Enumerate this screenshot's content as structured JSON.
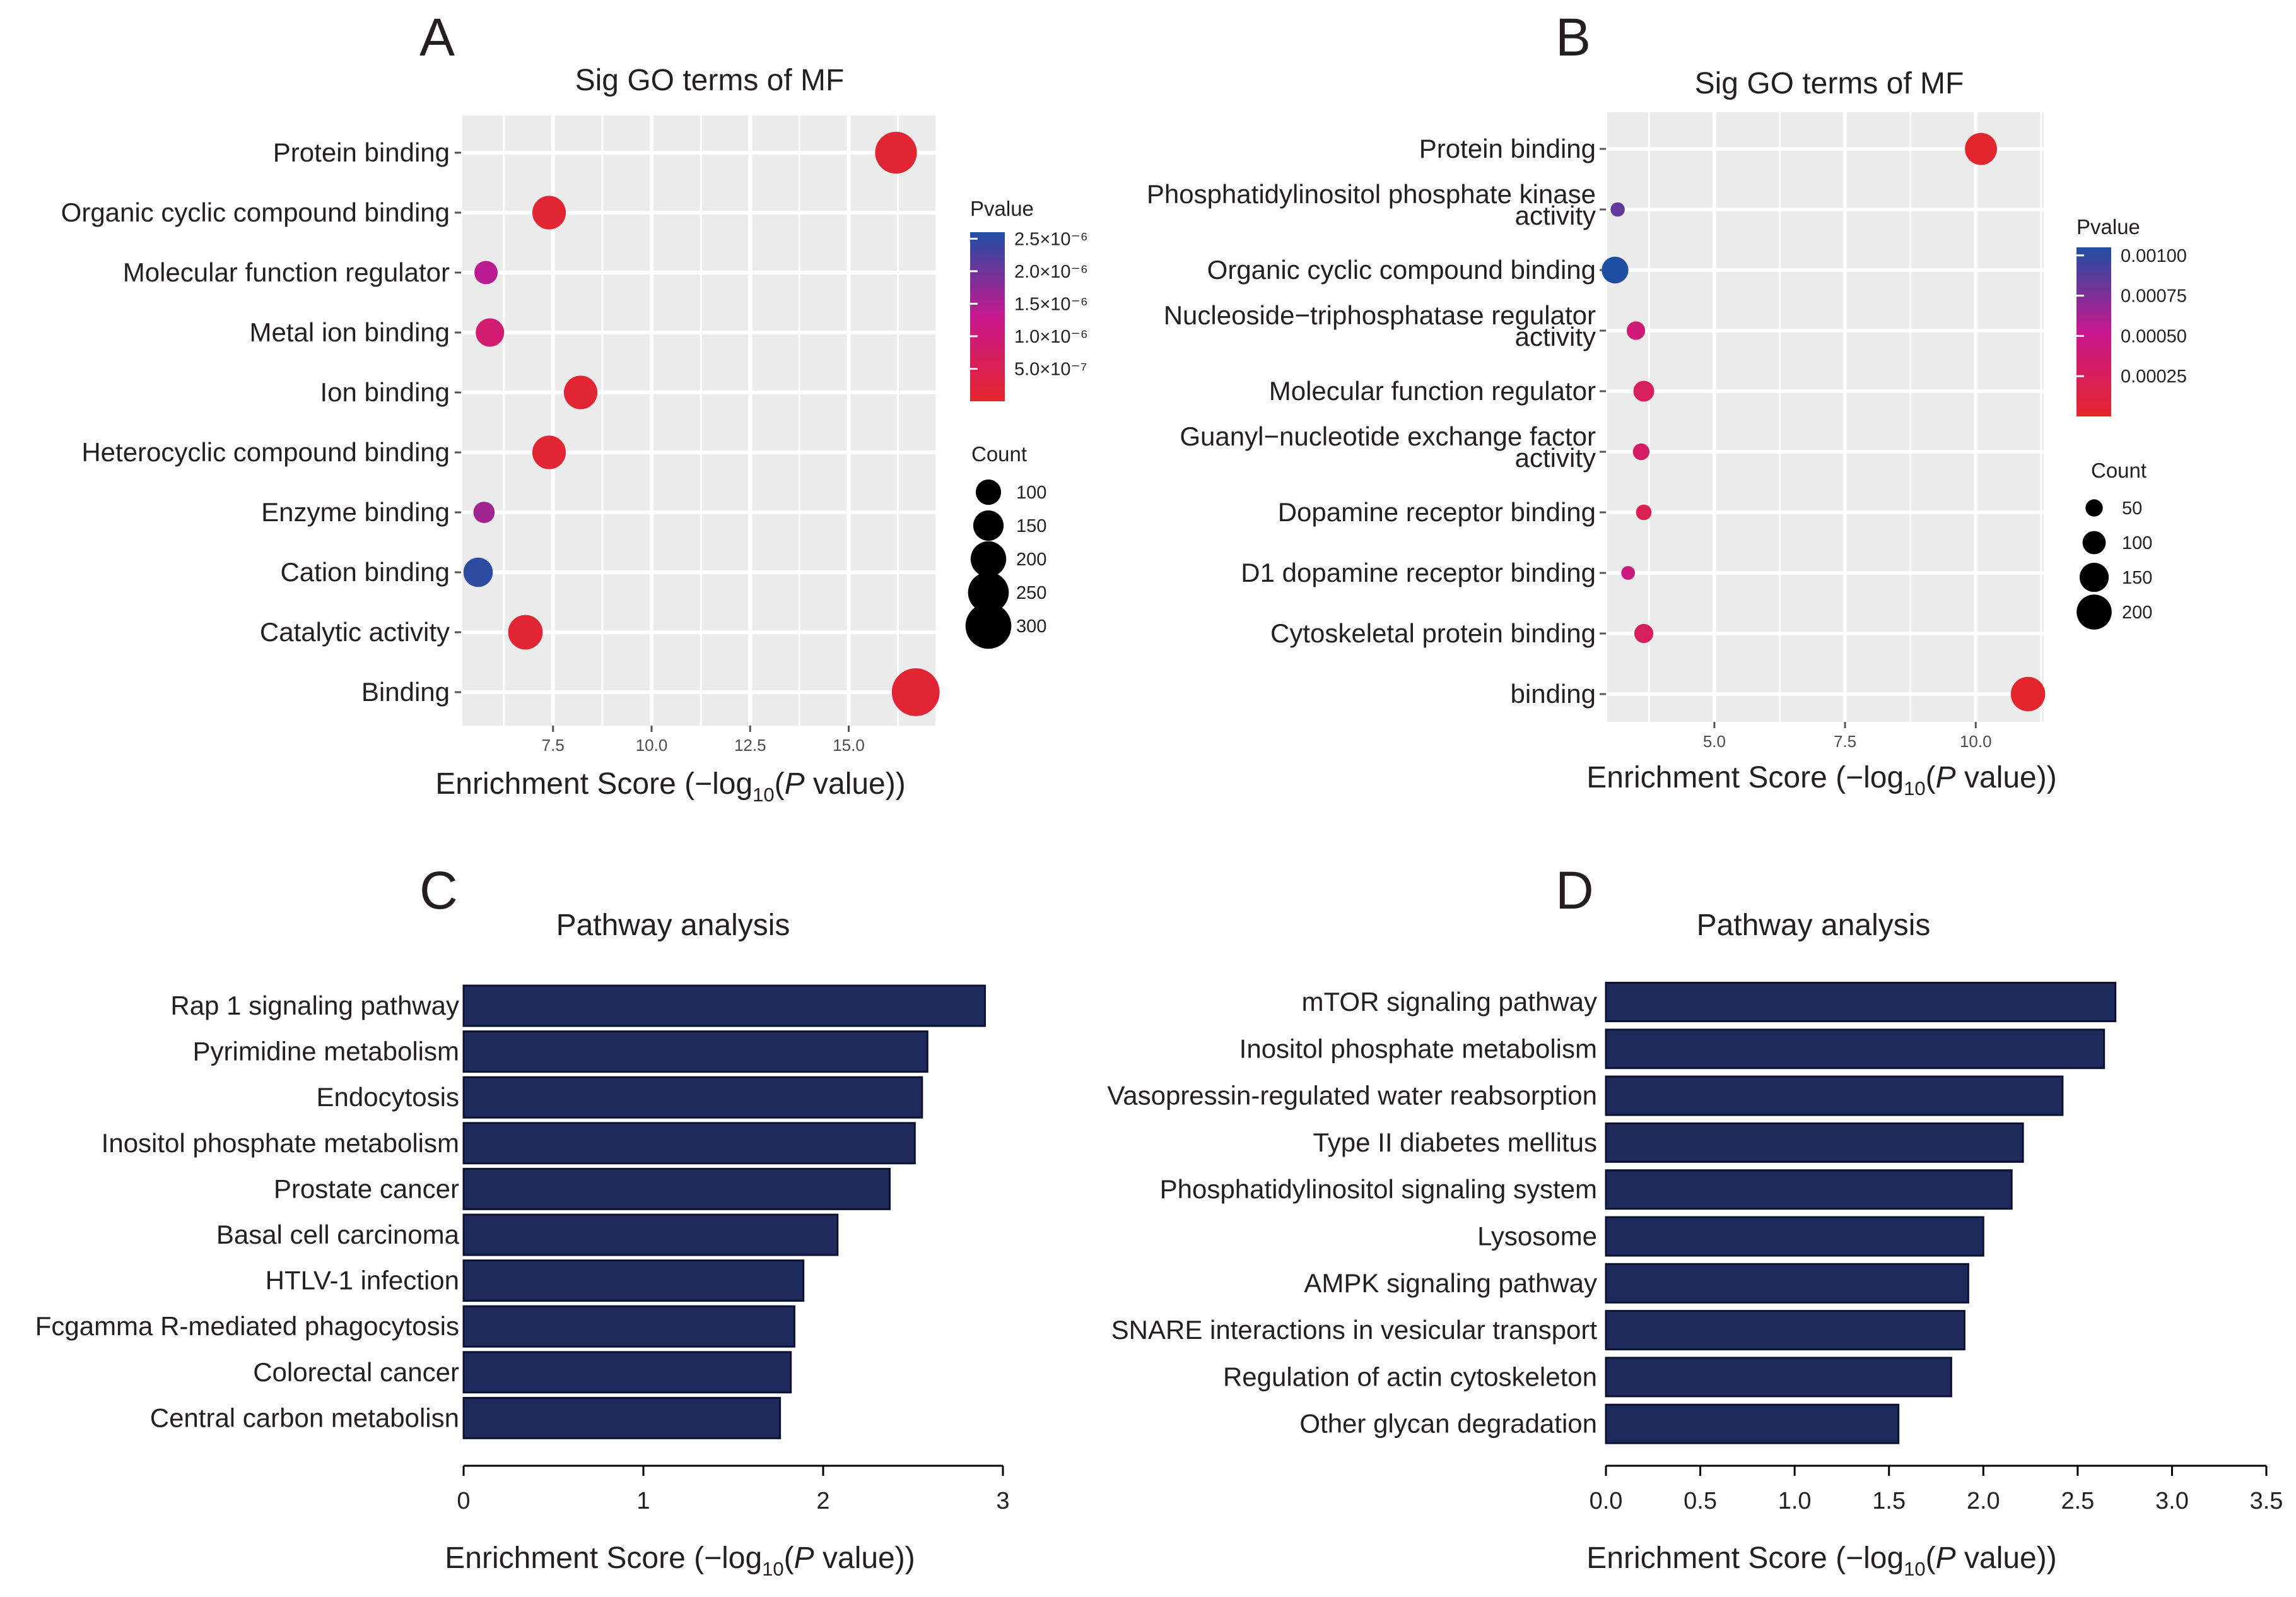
{
  "figure": {
    "panel_labels": [
      "A",
      "B",
      "C",
      "D"
    ],
    "axis_label": {
      "prefix": "Enrichment Score (−log",
      "sub": "10",
      "open": "(",
      "p": "P",
      "suffix": " value))"
    }
  },
  "colors": {
    "panel_bg": "#ebebeb",
    "grid": "#ffffff",
    "bar_fill": "#1f2a5c",
    "bar_stroke": "#0d1233",
    "pval_low": "#e4262c",
    "pval_mid": "#c8178e",
    "pval_high": "#1f4fa3"
  },
  "chart_data": [
    {
      "panel": "A",
      "type": "scatter",
      "title": "Sig GO terms of MF",
      "xlabel": "Enrichment Score (−log10(P value))",
      "xlim": [
        5.2,
        17.2
      ],
      "xticks": [
        "7.5",
        "10.0",
        "12.5",
        "15.0"
      ],
      "xtick_values": [
        7.5,
        10.0,
        12.5,
        15.0
      ],
      "categories": [
        "Protein binding",
        "Organic cyclic compound binding",
        "Molecular function regulator",
        "Metal ion binding",
        "Ion binding",
        "Heterocyclic compound binding",
        "Enzyme binding",
        "Cation binding",
        "Catalytic activity",
        "Binding"
      ],
      "x": [
        16.2,
        7.4,
        5.8,
        5.9,
        8.2,
        7.4,
        5.75,
        5.6,
        6.8,
        16.7
      ],
      "count": [
        260,
        180,
        80,
        130,
        180,
        180,
        60,
        140,
        190,
        320
      ],
      "pvalue": [
        1e-07,
        1e-07,
        1.4e-06,
        9e-07,
        1e-07,
        1e-07,
        1.6e-06,
        2.5e-06,
        1e-07,
        1e-07
      ],
      "legend": {
        "color_title": "Pvalue",
        "color_range": [
          0,
          2.6e-06
        ],
        "color_ticks": [
          "2.5×10⁻⁶",
          "2.0×10⁻⁶",
          "1.5×10⁻⁶",
          "1.0×10⁻⁶",
          "5.0×10⁻⁷"
        ],
        "color_tick_values": [
          2.5e-06,
          2e-06,
          1.5e-06,
          1e-06,
          5e-07
        ],
        "size_title": "Count",
        "size_labels": [
          "100",
          "150",
          "200",
          "250",
          "300"
        ],
        "size_values": [
          100,
          150,
          200,
          250,
          300
        ]
      }
    },
    {
      "panel": "B",
      "type": "scatter",
      "title": "Sig GO terms of MF",
      "xlabel": "Enrichment Score (−log10(P value))",
      "xlim": [
        2.95,
        11.3
      ],
      "xticks": [
        "5.0",
        "7.5",
        "10.0"
      ],
      "xtick_values": [
        5.0,
        7.5,
        10.0
      ],
      "categories": [
        "Protein binding",
        "Phosphatidylinositol phosphate kinase activity",
        "Organic cyclic compound binding",
        "Nucleoside−triphosphatase regulator activity",
        "Molecular function regulator",
        "Guanyl−nucleotide exchange factor activity",
        "Dopamine receptor binding",
        "D1 dopamine receptor binding",
        "Cytoskeletal protein binding",
        "binding"
      ],
      "category_lines": [
        [
          "Protein binding"
        ],
        [
          "Phosphatidylinositol phosphate kinase",
          "activity"
        ],
        [
          "Organic cyclic compound binding"
        ],
        [
          "Nucleoside−triphosphatase regulator",
          "activity"
        ],
        [
          "Molecular function regulator"
        ],
        [
          "Guanyl−nucleotide exchange factor",
          "activity"
        ],
        [
          "Dopamine receptor binding"
        ],
        [
          "D1 dopamine receptor binding"
        ],
        [
          "Cytoskeletal protein binding"
        ],
        [
          "binding"
        ]
      ],
      "x": [
        10.1,
        3.15,
        3.1,
        3.5,
        3.65,
        3.6,
        3.65,
        3.35,
        3.65,
        11.0
      ],
      "count": [
        175,
        25,
        130,
        60,
        80,
        45,
        35,
        20,
        65,
        195
      ],
      "pvalue": [
        1e-05,
        0.00085,
        0.00105,
        0.0004,
        0.00025,
        0.0003,
        0.0002,
        0.00045,
        0.00025,
        1e-05
      ],
      "legend": {
        "color_title": "Pvalue",
        "color_range": [
          0,
          0.00105
        ],
        "color_ticks": [
          "0.00100",
          "0.00075",
          "0.00050",
          "0.00025"
        ],
        "color_tick_values": [
          0.001,
          0.00075,
          0.0005,
          0.00025
        ],
        "size_title": "Count",
        "size_labels": [
          "50",
          "100",
          "150",
          "200"
        ],
        "size_values": [
          50,
          100,
          150,
          200
        ]
      }
    },
    {
      "panel": "C",
      "type": "bar",
      "orientation": "horizontal",
      "title": "Pathway analysis",
      "xlabel": "Enrichment Score (−log10(P value))",
      "xlim": [
        0,
        3
      ],
      "xticks": [
        "0",
        "1",
        "2",
        "3"
      ],
      "xtick_values": [
        0,
        1,
        2,
        3
      ],
      "categories": [
        "Rap 1 signaling pathway",
        "Pyrimidine metabolism",
        "Endocytosis",
        "Inositol phosphate metabolism",
        "Prostate cancer",
        "Basal cell carcinoma",
        "HTLV-1 infection",
        "Fcgamma R-mediated phagocytosis",
        "Colorectal cancer",
        "Central carbon metabolisn"
      ],
      "values": [
        2.9,
        2.58,
        2.55,
        2.51,
        2.37,
        2.08,
        1.89,
        1.84,
        1.82,
        1.76
      ]
    },
    {
      "panel": "D",
      "type": "bar",
      "orientation": "horizontal",
      "title": "Pathway analysis",
      "xlabel": "Enrichment Score (−log10(P value))",
      "xlim": [
        0,
        3.5
      ],
      "xticks": [
        "0.0",
        "0.5",
        "1.0",
        "1.5",
        "2.0",
        "2.5",
        "3.0",
        "3.5"
      ],
      "xtick_values": [
        0,
        0.5,
        1.0,
        1.5,
        2.0,
        2.5,
        3.0,
        3.5
      ],
      "categories": [
        "mTOR signaling pathway",
        "Inositol phosphate metabolism",
        "Vasopressin-regulated water reabsorption",
        "Type II diabetes mellitus",
        "Phosphatidylinositol  signaling system",
        "Lysosome",
        "AMPK signaling pathway",
        "SNARE interactions in  vesicular transport",
        "Regulation of actin cytoskeleton",
        "Other glycan degradation"
      ],
      "values": [
        2.7,
        2.64,
        2.42,
        2.21,
        2.15,
        2.0,
        1.92,
        1.9,
        1.83,
        1.55
      ]
    }
  ]
}
